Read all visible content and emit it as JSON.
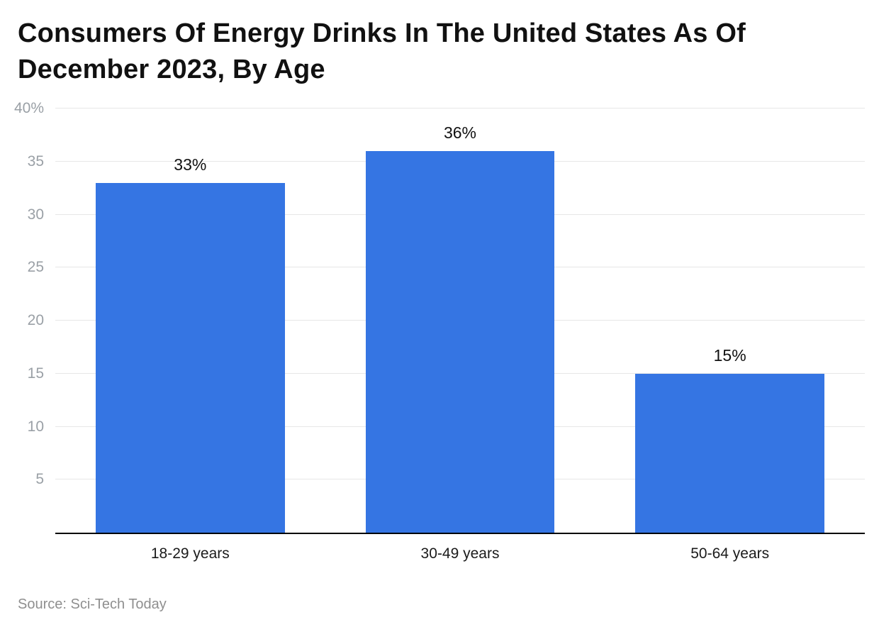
{
  "chart_data": {
    "type": "bar",
    "title": "Consumers Of Energy Drinks In The United States As Of December 2023, By Age",
    "source": "Source: Sci-Tech Today",
    "categories": [
      "18-29 years",
      "30-49 years",
      "50-64 years"
    ],
    "values": [
      33,
      36,
      15
    ],
    "value_labels": [
      "33%",
      "36%",
      "15%"
    ],
    "xlabel": "",
    "ylabel": "",
    "ylim": [
      0,
      40
    ],
    "yticks": [
      5,
      10,
      15,
      20,
      25,
      30,
      35,
      40
    ],
    "ytick_labels": [
      "5",
      "10",
      "15",
      "20",
      "25",
      "30",
      "35",
      "40%"
    ],
    "grid": true,
    "legend": false,
    "bar_color": "#3575e3"
  }
}
